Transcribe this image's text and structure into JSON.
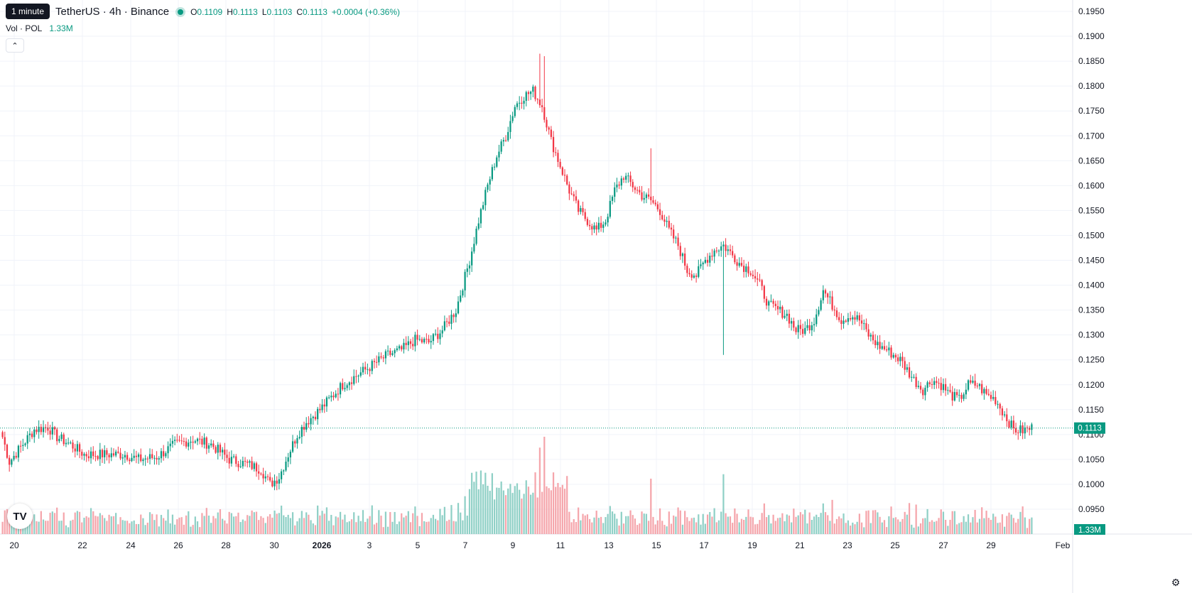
{
  "header": {
    "title": "TetherUS · 4h · Binance",
    "tooltip": "1 minute",
    "open_label": "O",
    "open": "0.1109",
    "high_label": "H",
    "high": "0.1113",
    "low_label": "L",
    "low": "0.1103",
    "close_label": "C",
    "close": "0.1113",
    "change": "+0.0004 (+0.36%)"
  },
  "volume_legend": {
    "label": "Vol · POL",
    "value": "1.33M"
  },
  "price_axis": {
    "ticks": [
      "0.1950",
      "0.1900",
      "0.1850",
      "0.1800",
      "0.1750",
      "0.1700",
      "0.1650",
      "0.1600",
      "0.1550",
      "0.1500",
      "0.1450",
      "0.1400",
      "0.1350",
      "0.1300",
      "0.1250",
      "0.1200",
      "0.1150",
      "0.1100",
      "0.1050",
      "0.1000",
      "0.0950"
    ],
    "current_price": "0.1113",
    "current_volume": "1.33M"
  },
  "time_axis": {
    "ticks": [
      "20",
      "22",
      "24",
      "26",
      "28",
      "30",
      "2026",
      "3",
      "5",
      "7",
      "9",
      "11",
      "13",
      "15",
      "17",
      "19",
      "21",
      "23",
      "25",
      "27",
      "29",
      "Feb"
    ]
  },
  "colors": {
    "up": "#089981",
    "down": "#f23645",
    "vol_up": "#8fd0c6",
    "vol_down": "#f5a5ab",
    "grid": "#f0f3fa"
  },
  "chart_data": {
    "type": "candlestick",
    "interval": "4h",
    "y_range": [
      0.0925,
      0.1975
    ],
    "anchors": [
      [
        0,
        0.1095
      ],
      [
        3,
        0.1045
      ],
      [
        8,
        0.1075
      ],
      [
        14,
        0.111
      ],
      [
        20,
        0.1115
      ],
      [
        24,
        0.1095
      ],
      [
        30,
        0.108
      ],
      [
        36,
        0.106
      ],
      [
        44,
        0.106
      ],
      [
        54,
        0.106
      ],
      [
        60,
        0.105
      ],
      [
        68,
        0.1055
      ],
      [
        76,
        0.108
      ],
      [
        84,
        0.109
      ],
      [
        92,
        0.108
      ],
      [
        100,
        0.105
      ],
      [
        108,
        0.104
      ],
      [
        114,
        0.103
      ],
      [
        118,
        0.1
      ],
      [
        122,
        0.1015
      ],
      [
        126,
        0.106
      ],
      [
        130,
        0.11
      ],
      [
        134,
        0.1125
      ],
      [
        140,
        0.115
      ],
      [
        150,
        0.12
      ],
      [
        160,
        0.123
      ],
      [
        170,
        0.126
      ],
      [
        176,
        0.127
      ],
      [
        182,
        0.129
      ],
      [
        188,
        0.1285
      ],
      [
        194,
        0.131
      ],
      [
        200,
        0.135
      ],
      [
        206,
        0.145
      ],
      [
        210,
        0.153
      ],
      [
        214,
        0.16
      ],
      [
        218,
        0.166
      ],
      [
        222,
        0.17
      ],
      [
        226,
        0.176
      ],
      [
        230,
        0.178
      ],
      [
        234,
        0.179
      ],
      [
        238,
        0.176
      ],
      [
        242,
        0.169
      ],
      [
        246,
        0.164
      ],
      [
        250,
        0.159
      ],
      [
        254,
        0.155
      ],
      [
        258,
        0.153
      ],
      [
        262,
        0.151
      ],
      [
        266,
        0.153
      ],
      [
        270,
        0.159
      ],
      [
        274,
        0.162
      ],
      [
        278,
        0.16
      ],
      [
        282,
        0.158
      ],
      [
        286,
        0.157
      ],
      [
        290,
        0.155
      ],
      [
        294,
        0.151
      ],
      [
        298,
        0.148
      ],
      [
        302,
        0.143
      ],
      [
        306,
        0.142
      ],
      [
        310,
        0.145
      ],
      [
        314,
        0.147
      ],
      [
        318,
        0.148
      ],
      [
        322,
        0.146
      ],
      [
        326,
        0.144
      ],
      [
        330,
        0.143
      ],
      [
        334,
        0.14
      ],
      [
        338,
        0.136
      ],
      [
        342,
        0.135
      ],
      [
        346,
        0.134
      ],
      [
        350,
        0.131
      ],
      [
        354,
        0.131
      ],
      [
        358,
        0.133
      ],
      [
        362,
        0.139
      ],
      [
        366,
        0.136
      ],
      [
        370,
        0.133
      ],
      [
        374,
        0.134
      ],
      [
        378,
        0.133
      ],
      [
        382,
        0.13
      ],
      [
        386,
        0.128
      ],
      [
        390,
        0.127
      ],
      [
        396,
        0.125
      ],
      [
        402,
        0.121
      ],
      [
        406,
        0.119
      ],
      [
        410,
        0.121
      ],
      [
        414,
        0.12
      ],
      [
        418,
        0.118
      ],
      [
        422,
        0.117
      ],
      [
        426,
        0.12
      ],
      [
        430,
        0.12
      ],
      [
        434,
        0.118
      ],
      [
        438,
        0.117
      ],
      [
        442,
        0.114
      ],
      [
        446,
        0.111
      ],
      [
        450,
        0.1108
      ],
      [
        454,
        0.1113
      ]
    ],
    "spikes": [
      [
        239,
        0.186
      ],
      [
        237,
        0.1865
      ],
      [
        318,
        0.126
      ],
      [
        286,
        0.1675
      ]
    ],
    "current_price": 0.1113
  }
}
